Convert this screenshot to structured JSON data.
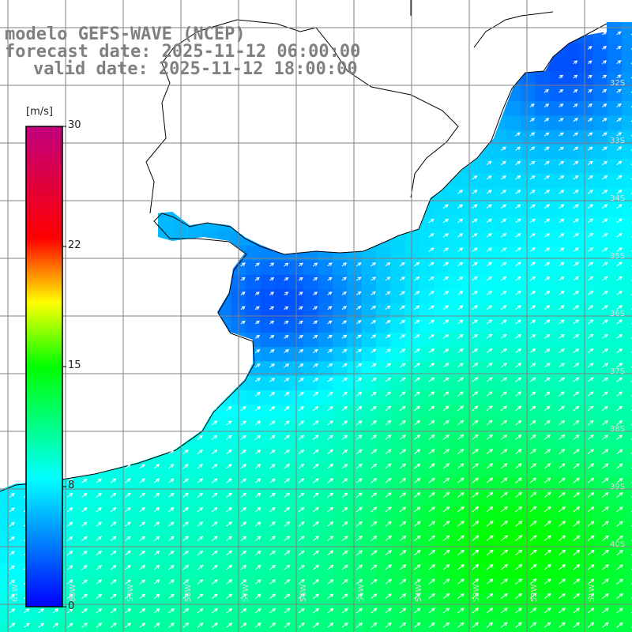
{
  "title": {
    "model": "modelo GEFS-WAVE (NCEP)",
    "forecast": "forecast date: 2025-11-12 06:00:00",
    "valid": "valid date: 2025-11-12 18:00:00"
  },
  "colorbar": {
    "unit": "[m/s]",
    "ticks": [
      "30",
      "22",
      "15",
      "8",
      "0"
    ],
    "stops": [
      "#0000ff",
      "#00ffff",
      "#00ff00",
      "#ffff00",
      "#ff0000",
      "#c0007f"
    ]
  },
  "map": {
    "region": "Rio de la Plata / SW Atlantic",
    "lat_labels": [
      "32S",
      "33S",
      "34S",
      "35S",
      "36S",
      "37S",
      "38S",
      "39S",
      "40S"
    ],
    "lon_labels": [
      "61W",
      "60W",
      "59W",
      "58W",
      "57W",
      "56W",
      "55W",
      "54W",
      "53W",
      "52W",
      "51W"
    ],
    "land_color": "#ffffff",
    "coast_color": "#000000",
    "grid_color": "#808080",
    "arrow_color": "#ffffff"
  },
  "chart_data": {
    "type": "heatmap",
    "variable": "wind speed",
    "unit": "[m/s]",
    "range": [
      0,
      30
    ],
    "ticks": [
      0,
      8,
      15,
      22,
      30
    ],
    "description_of_field": "wind field with arrows from SW to NE; strongest (~13-15 m/s) toward SE, weakest (~2-4 m/s) near the Rio de la Plata estuary"
  }
}
